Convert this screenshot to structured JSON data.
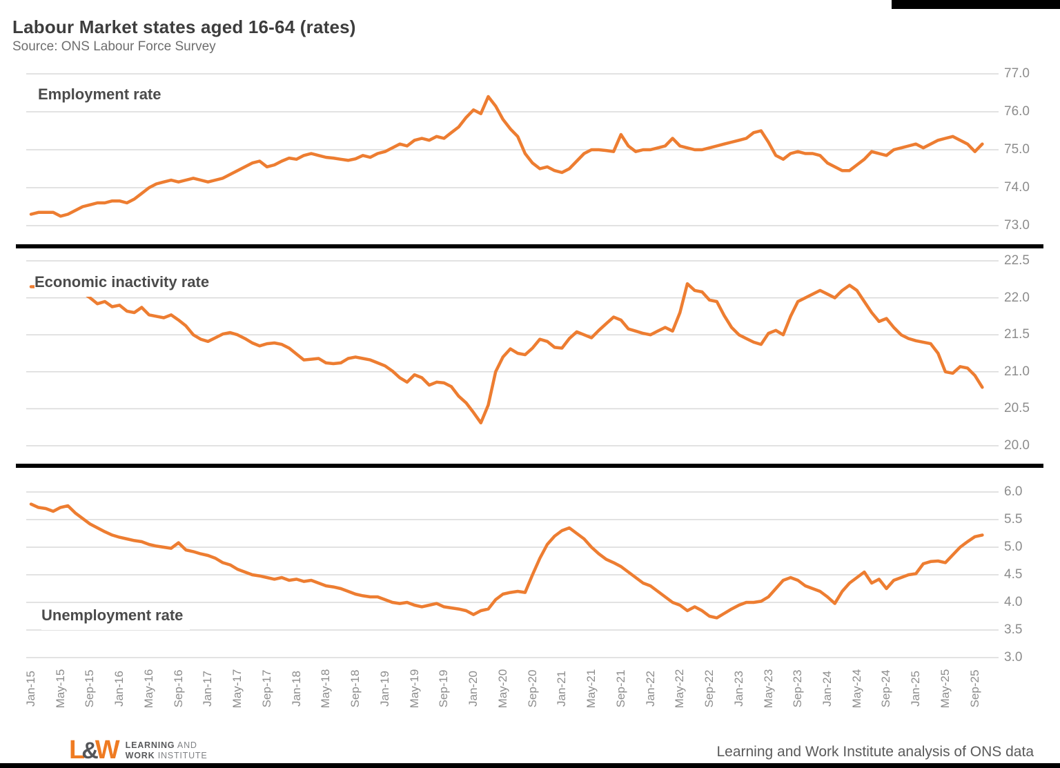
{
  "page": {
    "title": "Labour Market states aged 16-64 (rates)",
    "subtitle": "Source: ONS Labour Force Survey",
    "footer_right": "Learning and Work Institute analysis of ONS data",
    "logo": {
      "mark_l": "L",
      "mark_amp": "&",
      "mark_w": "W",
      "line1_bold": "LEARNING",
      "line1_rest": " AND",
      "line2_bold": "WORK",
      "line2_rest": " INSTITUTE"
    }
  },
  "colors": {
    "line": "#ED7D31",
    "grid": "#D9D9D9",
    "divider": "#000000",
    "axis_text": "#8C8C8C"
  },
  "x_axis": {
    "tick_labels": [
      "Jan-15",
      "May-15",
      "Sep-15",
      "Jan-16",
      "May-16",
      "Sep-16",
      "Jan-17",
      "May-17",
      "Sep-17",
      "Jan-18",
      "May-18",
      "Sep-18",
      "Jan-19",
      "May-19",
      "Sep-19",
      "Jan-20",
      "May-20",
      "Sep-20",
      "Jan-21",
      "May-21",
      "Sep-21",
      "Jan-22",
      "May-22",
      "Sep-22",
      "Jan-23",
      "May-23",
      "Sep-23",
      "Jan-24",
      "May-24",
      "Sep-24",
      "Jan-25",
      "May-25",
      "Sep-25"
    ]
  },
  "chart_data": [
    {
      "type": "line",
      "title": "Employment rate",
      "x_start": "Jan-15",
      "x_step_months": 1,
      "ylim": [
        73.0,
        77.0
      ],
      "y_tick_labels": [
        "77.0",
        "76.0",
        "75.0",
        "74.0",
        "73.0"
      ],
      "values": [
        73.3,
        73.35,
        73.35,
        73.35,
        73.25,
        73.3,
        73.4,
        73.5,
        73.55,
        73.6,
        73.6,
        73.65,
        73.65,
        73.6,
        73.7,
        73.85,
        74.0,
        74.1,
        74.15,
        74.2,
        74.15,
        74.2,
        74.25,
        74.2,
        74.15,
        74.2,
        74.25,
        74.35,
        74.45,
        74.55,
        74.65,
        74.7,
        74.55,
        74.6,
        74.7,
        74.78,
        74.75,
        74.85,
        74.9,
        74.85,
        74.8,
        74.78,
        74.75,
        74.72,
        74.76,
        74.85,
        74.8,
        74.9,
        74.95,
        75.05,
        75.15,
        75.1,
        75.25,
        75.3,
        75.25,
        75.35,
        75.3,
        75.45,
        75.6,
        75.85,
        76.05,
        75.95,
        76.4,
        76.15,
        75.8,
        75.55,
        75.35,
        74.9,
        74.65,
        74.5,
        74.55,
        74.45,
        74.4,
        74.5,
        74.7,
        74.9,
        75.0,
        75.0,
        74.98,
        74.95,
        75.4,
        75.1,
        74.95,
        75.0,
        75.0,
        75.05,
        75.1,
        75.3,
        75.1,
        75.05,
        75.0,
        75.0,
        75.05,
        75.1,
        75.15,
        75.2,
        75.25,
        75.3,
        75.45,
        75.5,
        75.2,
        74.85,
        74.75,
        74.9,
        74.95,
        74.9,
        74.9,
        74.85,
        74.65,
        74.55,
        74.45,
        74.45,
        74.6,
        74.75,
        74.95,
        74.9,
        74.85,
        75.0,
        75.05,
        75.1,
        75.15,
        75.05,
        75.15,
        75.25,
        75.3,
        75.35,
        75.25,
        75.15,
        74.95,
        75.15
      ]
    },
    {
      "type": "line",
      "title": "Economic inactivity rate",
      "x_start": "Jan-15",
      "x_step_months": 1,
      "ylim": [
        20.0,
        22.5
      ],
      "y_tick_labels": [
        "22.5",
        "22.0",
        "21.5",
        "21.0",
        "20.5",
        "20.0"
      ],
      "values": [
        22.15,
        22.15,
        22.12,
        22.1,
        22.1,
        22.1,
        22.08,
        22.07,
        22.0,
        21.92,
        21.95,
        21.88,
        21.9,
        21.82,
        21.8,
        21.87,
        21.77,
        21.75,
        21.73,
        21.77,
        21.7,
        21.62,
        21.5,
        21.44,
        21.41,
        21.46,
        21.51,
        21.53,
        21.5,
        21.45,
        21.39,
        21.35,
        21.38,
        21.39,
        21.37,
        21.32,
        21.24,
        21.16,
        21.17,
        21.18,
        21.12,
        21.11,
        21.12,
        21.18,
        21.2,
        21.18,
        21.16,
        21.12,
        21.08,
        21.01,
        20.92,
        20.86,
        20.96,
        20.92,
        20.82,
        20.86,
        20.85,
        20.8,
        20.67,
        20.58,
        20.45,
        20.31,
        20.55,
        21.0,
        21.2,
        21.31,
        21.25,
        21.23,
        21.32,
        21.44,
        21.41,
        21.33,
        21.32,
        21.45,
        21.54,
        21.5,
        21.46,
        21.56,
        21.65,
        21.74,
        21.7,
        21.58,
        21.55,
        21.52,
        21.5,
        21.55,
        21.6,
        21.55,
        21.8,
        22.19,
        22.1,
        22.08,
        21.97,
        21.95,
        21.76,
        21.6,
        21.5,
        21.45,
        21.4,
        21.37,
        21.52,
        21.56,
        21.5,
        21.75,
        21.95,
        22.0,
        22.05,
        22.1,
        22.05,
        22.0,
        22.1,
        22.17,
        22.1,
        21.95,
        21.8,
        21.68,
        21.72,
        21.6,
        21.5,
        21.45,
        21.42,
        21.4,
        21.38,
        21.25,
        21.0,
        20.98,
        21.07,
        21.05,
        20.95,
        20.79
      ]
    },
    {
      "type": "line",
      "title": "Unemployment rate",
      "x_start": "Jan-15",
      "x_step_months": 1,
      "ylim": [
        3.0,
        6.0
      ],
      "y_tick_labels": [
        "6.0",
        "5.5",
        "5.0",
        "4.5",
        "4.0",
        "3.5",
        "3.0"
      ],
      "values": [
        5.78,
        5.72,
        5.7,
        5.65,
        5.72,
        5.75,
        5.62,
        5.52,
        5.42,
        5.35,
        5.28,
        5.22,
        5.18,
        5.15,
        5.12,
        5.1,
        5.05,
        5.02,
        5.0,
        4.98,
        5.08,
        4.95,
        4.92,
        4.88,
        4.85,
        4.8,
        4.72,
        4.68,
        4.6,
        4.55,
        4.5,
        4.48,
        4.45,
        4.42,
        4.45,
        4.4,
        4.42,
        4.38,
        4.4,
        4.35,
        4.3,
        4.28,
        4.25,
        4.2,
        4.15,
        4.12,
        4.1,
        4.1,
        4.05,
        4.0,
        3.98,
        4.0,
        3.95,
        3.92,
        3.95,
        3.98,
        3.92,
        3.9,
        3.88,
        3.85,
        3.78,
        3.85,
        3.88,
        4.05,
        4.15,
        4.18,
        4.2,
        4.18,
        4.5,
        4.8,
        5.05,
        5.2,
        5.3,
        5.35,
        5.25,
        5.15,
        5.0,
        4.88,
        4.78,
        4.72,
        4.65,
        4.55,
        4.45,
        4.35,
        4.3,
        4.2,
        4.1,
        4.0,
        3.95,
        3.85,
        3.92,
        3.85,
        3.75,
        3.72,
        3.8,
        3.88,
        3.95,
        4.0,
        4.0,
        4.02,
        4.1,
        4.25,
        4.4,
        4.45,
        4.4,
        4.3,
        4.25,
        4.2,
        4.1,
        3.98,
        4.2,
        4.35,
        4.45,
        4.55,
        4.35,
        4.42,
        4.25,
        4.4,
        4.45,
        4.5,
        4.52,
        4.7,
        4.74,
        4.75,
        4.72,
        4.86,
        5.0,
        5.1,
        5.19,
        5.22
      ]
    }
  ]
}
